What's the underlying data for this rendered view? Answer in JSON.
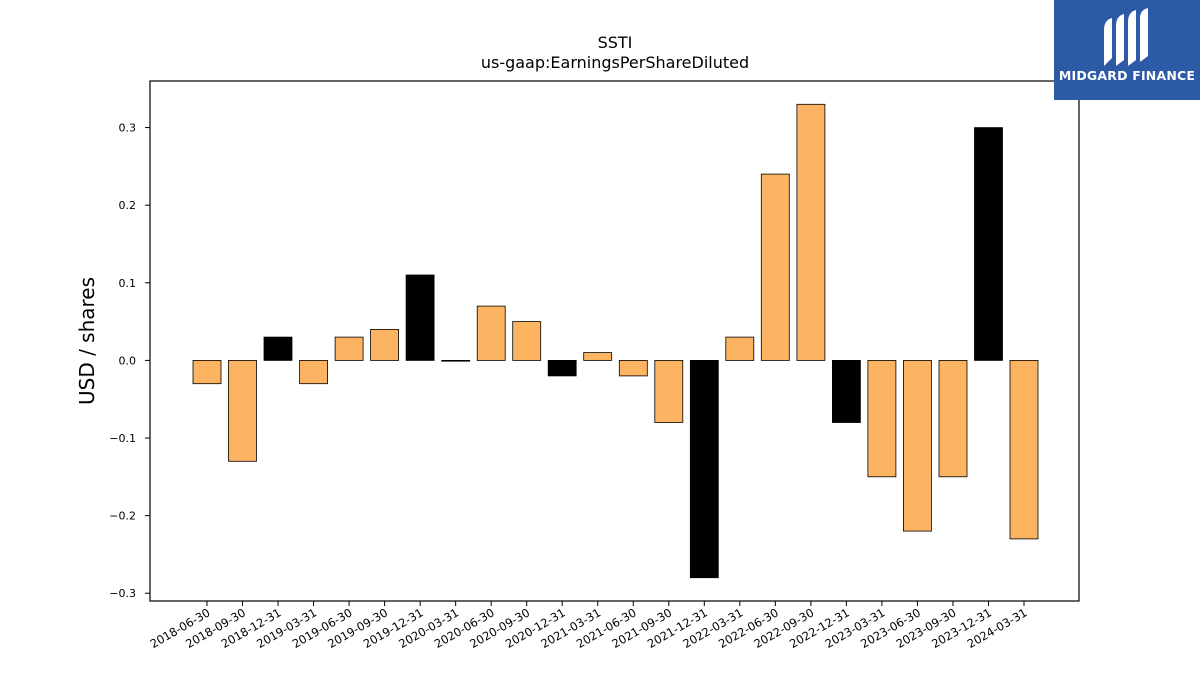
{
  "brand": {
    "name": "MIDGARD FINANCE",
    "color": "#2d5aa6",
    "icon": "midgard-logo-icon"
  },
  "colors": {
    "bar_default": "#fdb462",
    "bar_highlight": "#000000",
    "bar_edge": "#000000"
  },
  "chart_data": {
    "type": "bar",
    "title": "SSTI",
    "subtitle": "us-gaap:EarningsPerShareDiluted",
    "xlabel": "",
    "ylabel": "USD / shares",
    "ylim": [
      -0.31,
      0.36
    ],
    "yticks": [
      -0.3,
      -0.2,
      -0.1,
      0.0,
      0.1,
      0.2,
      0.3
    ],
    "ytick_labels": [
      "−0.3",
      "−0.2",
      "−0.1",
      "0.0",
      "0.1",
      "0.2",
      "0.3"
    ],
    "grid": false,
    "legend": false,
    "categories": [
      "2018-06-30",
      "2018-09-30",
      "2018-12-31",
      "2019-03-31",
      "2019-06-30",
      "2019-09-30",
      "2019-12-31",
      "2020-03-31",
      "2020-06-30",
      "2020-09-30",
      "2020-12-31",
      "2021-03-31",
      "2021-06-30",
      "2021-09-30",
      "2021-12-31",
      "2022-03-31",
      "2022-06-30",
      "2022-09-30",
      "2022-12-31",
      "2023-03-31",
      "2023-06-30",
      "2023-09-30",
      "2023-12-31",
      "2024-03-31"
    ],
    "values": [
      -0.03,
      -0.13,
      0.03,
      -0.03,
      0.03,
      0.04,
      0.11,
      0.0,
      0.07,
      0.05,
      -0.02,
      0.01,
      -0.02,
      -0.08,
      -0.28,
      0.03,
      0.24,
      0.33,
      -0.08,
      -0.15,
      -0.22,
      -0.15,
      0.3,
      -0.23
    ],
    "highlight": [
      false,
      false,
      true,
      false,
      false,
      false,
      true,
      false,
      false,
      false,
      true,
      false,
      false,
      false,
      true,
      false,
      false,
      false,
      true,
      false,
      false,
      false,
      true,
      false
    ]
  }
}
